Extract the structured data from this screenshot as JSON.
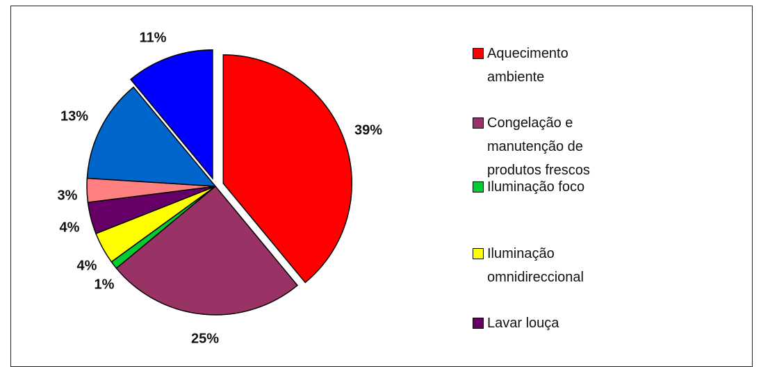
{
  "chart_data": {
    "type": "pie",
    "categories": [
      "Aquecimento ambiente",
      "Congelação e manutenção de produtos frescos",
      "Iluminação foco",
      "Iluminação omnidireccional",
      "Lavar louça",
      null,
      null,
      null
    ],
    "values": [
      39,
      25,
      1,
      4,
      4,
      3,
      13,
      11
    ],
    "value_labels": [
      "39%",
      "25%",
      "1%",
      "4%",
      "4%",
      "3%",
      "13%",
      "11%"
    ],
    "colors": [
      "#ff0000",
      "#993366",
      "#00cc33",
      "#ffff00",
      "#660066",
      "#ff8080",
      "#0066cc",
      "#0000ff"
    ]
  }
}
